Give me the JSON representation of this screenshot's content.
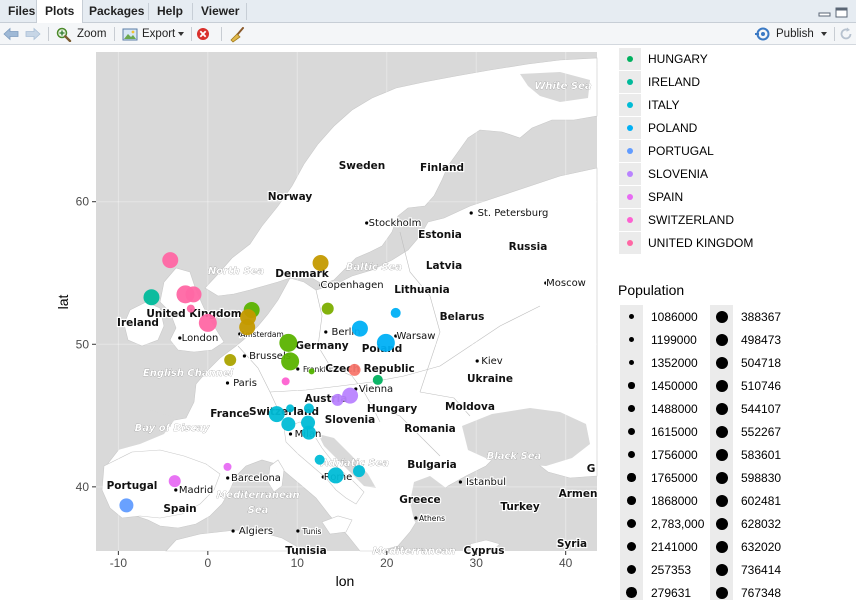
{
  "tabs": [
    {
      "label": "Files",
      "active": false
    },
    {
      "label": "Plots",
      "active": true
    },
    {
      "label": "Packages",
      "active": false
    },
    {
      "label": "Help",
      "active": false
    },
    {
      "label": "Viewer",
      "active": false
    }
  ],
  "toolbar": {
    "zoom_label": "Zoom",
    "export_label": "Export",
    "publish_label": "Publish"
  },
  "colors": {
    "map_water": "#d9d9d9",
    "map_land": "#ffffff",
    "panel_bg": "#ebebeb",
    "accent_blue": "#3a79c4",
    "remove_red": "#d9302c"
  },
  "map_labels": [
    {
      "text": "White Sea",
      "style": "sea"
    },
    {
      "text": "Sweden",
      "style": "country"
    },
    {
      "text": "Finland",
      "style": "country"
    },
    {
      "text": "Norway",
      "style": "country"
    },
    {
      "text": "Stockholm",
      "style": "city"
    },
    {
      "text": "St. Petersburg",
      "style": "city"
    },
    {
      "text": "Estonia",
      "style": "country"
    },
    {
      "text": "Russia",
      "style": "country"
    },
    {
      "text": "North Sea",
      "style": "sea"
    },
    {
      "text": "Baltic Sea",
      "style": "sea"
    },
    {
      "text": "Latvia",
      "style": "country"
    },
    {
      "text": "Denmark",
      "style": "country"
    },
    {
      "text": "Moscow",
      "style": "city"
    },
    {
      "text": "Copenhagen",
      "style": "city"
    },
    {
      "text": "Lithuania",
      "style": "country"
    },
    {
      "text": "Belarus",
      "style": "country"
    },
    {
      "text": "Ireland",
      "style": "country"
    },
    {
      "text": "United Kingdom",
      "style": "country"
    },
    {
      "text": "Berlin",
      "style": "city"
    },
    {
      "text": "Warsaw",
      "style": "city"
    },
    {
      "text": "Amsterdam",
      "style": "city-small"
    },
    {
      "text": "London",
      "style": "city"
    },
    {
      "text": "Germany",
      "style": "country"
    },
    {
      "text": "Poland",
      "style": "country"
    },
    {
      "text": "Brussels",
      "style": "city"
    },
    {
      "text": "Kiev",
      "style": "city"
    },
    {
      "text": "Frankfurt",
      "style": "city-small"
    },
    {
      "text": "Czech Republic",
      "style": "country"
    },
    {
      "text": "English Channel",
      "style": "sea"
    },
    {
      "text": "Ukraine",
      "style": "country"
    },
    {
      "text": "Paris",
      "style": "city"
    },
    {
      "text": "Vienna",
      "style": "city"
    },
    {
      "text": "Austria",
      "style": "country"
    },
    {
      "text": "France",
      "style": "country"
    },
    {
      "text": "Switzerland",
      "style": "country"
    },
    {
      "text": "Hungary",
      "style": "country"
    },
    {
      "text": "Moldova",
      "style": "country"
    },
    {
      "text": "Slovenia",
      "style": "country"
    },
    {
      "text": "Bay of Biscay",
      "style": "sea"
    },
    {
      "text": "Milan",
      "style": "city"
    },
    {
      "text": "Romania",
      "style": "country"
    },
    {
      "text": "Adriatic Sea",
      "style": "sea"
    },
    {
      "text": "Bulgaria",
      "style": "country"
    },
    {
      "text": "Black Sea",
      "style": "sea"
    },
    {
      "text": "Barcelona",
      "style": "city"
    },
    {
      "text": "Rome",
      "style": "city"
    },
    {
      "text": "Istanbul",
      "style": "city"
    },
    {
      "text": "Portugal",
      "style": "country"
    },
    {
      "text": "Madrid",
      "style": "city"
    },
    {
      "text": "Mediterranean",
      "style": "sea"
    },
    {
      "text": "Sea",
      "style": "sea"
    },
    {
      "text": "Greece",
      "style": "country"
    },
    {
      "text": "Armen",
      "style": "country"
    },
    {
      "text": "Spain",
      "style": "country"
    },
    {
      "text": "Turkey",
      "style": "country"
    },
    {
      "text": "Athens",
      "style": "city-small"
    },
    {
      "text": "Algiers",
      "style": "city"
    },
    {
      "text": "Tunis",
      "style": "city-small"
    },
    {
      "text": "Tunisia",
      "style": "country"
    },
    {
      "text": "Cyprus",
      "style": "country"
    },
    {
      "text": "Syria",
      "style": "country"
    },
    {
      "text": "Mediterranean",
      "style": "sea"
    },
    {
      "text": "G",
      "style": "country"
    }
  ],
  "chart_data": {
    "type": "scatter",
    "xlabel": "lon",
    "ylabel": "lat",
    "xlim": [
      -12.5,
      43.5
    ],
    "ylim": [
      35.5,
      70.5
    ],
    "x_ticks": [
      -10,
      0,
      10,
      20,
      30,
      40
    ],
    "y_ticks": [
      40,
      50,
      60
    ],
    "x_tick_labels": [
      "-10",
      "0",
      "10",
      "20",
      "30",
      "40"
    ],
    "y_tick_labels": [
      "40",
      "50",
      "60"
    ],
    "grid": true,
    "legend_placement": "right",
    "country_legend": [
      {
        "name": "HUNGARY",
        "color": "#00b15f"
      },
      {
        "name": "IRELAND",
        "color": "#00ba9b"
      },
      {
        "name": "ITALY",
        "color": "#00bcd6"
      },
      {
        "name": "POLAND",
        "color": "#00b0f5"
      },
      {
        "name": "PORTUGAL",
        "color": "#619cff"
      },
      {
        "name": "SLOVENIA",
        "color": "#b983ff"
      },
      {
        "name": "SPAIN",
        "color": "#e76bf3"
      },
      {
        "name": "SWITZERLAND",
        "color": "#fd61d1"
      },
      {
        "name": "UNITED KINGDOM",
        "color": "#ff67a4"
      }
    ],
    "population_legend_title": "Population",
    "population_legend": [
      "1086000",
      "1199000",
      "1352000",
      "1450000",
      "1488000",
      "1615000",
      "1756000",
      "1765000",
      "1868000",
      "2,783,000",
      "2141000",
      "257353",
      "279631",
      "388367",
      "498473",
      "504718",
      "510746",
      "544107",
      "552267",
      "583601",
      "598830",
      "602481",
      "628032",
      "632020",
      "736414",
      "767348"
    ],
    "points": [
      {
        "lon": -4.2,
        "lat": 55.9,
        "color": "#ff67a4",
        "size": 8
      },
      {
        "lon": -2.5,
        "lat": 53.5,
        "color": "#ff67a4",
        "size": 9
      },
      {
        "lon": -1.6,
        "lat": 53.5,
        "color": "#ff67a4",
        "size": 8
      },
      {
        "lon": -1.9,
        "lat": 52.5,
        "color": "#ff67a4",
        "size": 4
      },
      {
        "lon": 0.0,
        "lat": 51.5,
        "color": "#ff67a4",
        "size": 9
      },
      {
        "lon": -6.3,
        "lat": 53.3,
        "color": "#00ba9b",
        "size": 8
      },
      {
        "lon": 4.9,
        "lat": 52.4,
        "color": "#5bb300",
        "size": 8
      },
      {
        "lon": 4.5,
        "lat": 51.9,
        "color": "#c49a00",
        "size": 8
      },
      {
        "lon": 4.4,
        "lat": 51.2,
        "color": "#c49a00",
        "size": 8
      },
      {
        "lon": 2.5,
        "lat": 48.9,
        "color": "#aba300",
        "size": 6
      },
      {
        "lon": 9.0,
        "lat": 50.1,
        "color": "#5bb300",
        "size": 9
      },
      {
        "lon": 9.2,
        "lat": 48.8,
        "color": "#5bb300",
        "size": 9
      },
      {
        "lon": 13.4,
        "lat": 52.5,
        "color": "#7cae00",
        "size": 6
      },
      {
        "lon": 12.6,
        "lat": 55.7,
        "color": "#c49a00",
        "size": 8
      },
      {
        "lon": 11.6,
        "lat": 48.1,
        "color": "#53b400",
        "size": 3
      },
      {
        "lon": 8.7,
        "lat": 47.4,
        "color": "#fd61d1",
        "size": 4
      },
      {
        "lon": 17.0,
        "lat": 51.1,
        "color": "#00b0f5",
        "size": 8
      },
      {
        "lon": 21.0,
        "lat": 52.2,
        "color": "#00b0f5",
        "size": 5
      },
      {
        "lon": 19.9,
        "lat": 50.1,
        "color": "#00b0f5",
        "size": 9
      },
      {
        "lon": 16.4,
        "lat": 48.2,
        "color": "#f8766d",
        "size": 6
      },
      {
        "lon": 19.0,
        "lat": 47.5,
        "color": "#00b15f",
        "size": 5
      },
      {
        "lon": 14.5,
        "lat": 46.1,
        "color": "#b983ff",
        "size": 6
      },
      {
        "lon": 15.9,
        "lat": 46.4,
        "color": "#b983ff",
        "size": 8
      },
      {
        "lon": 7.7,
        "lat": 45.1,
        "color": "#00bcd6",
        "size": 8
      },
      {
        "lon": 9.2,
        "lat": 45.5,
        "color": "#00bcd6",
        "size": 4
      },
      {
        "lon": 9.0,
        "lat": 44.4,
        "color": "#00bcd6",
        "size": 7
      },
      {
        "lon": 11.3,
        "lat": 45.5,
        "color": "#00bcd6",
        "size": 5
      },
      {
        "lon": 11.2,
        "lat": 44.5,
        "color": "#00bcd6",
        "size": 7
      },
      {
        "lon": 11.3,
        "lat": 43.8,
        "color": "#00bcd6",
        "size": 7
      },
      {
        "lon": 12.5,
        "lat": 41.9,
        "color": "#00bcd6",
        "size": 5
      },
      {
        "lon": 14.3,
        "lat": 40.8,
        "color": "#00bcd6",
        "size": 8
      },
      {
        "lon": 16.9,
        "lat": 41.1,
        "color": "#00bcd6",
        "size": 6
      },
      {
        "lon": -3.7,
        "lat": 40.4,
        "color": "#e76bf3",
        "size": 6
      },
      {
        "lon": 2.2,
        "lat": 41.4,
        "color": "#e76bf3",
        "size": 4
      },
      {
        "lon": -9.1,
        "lat": 38.7,
        "color": "#619cff",
        "size": 7
      }
    ]
  }
}
